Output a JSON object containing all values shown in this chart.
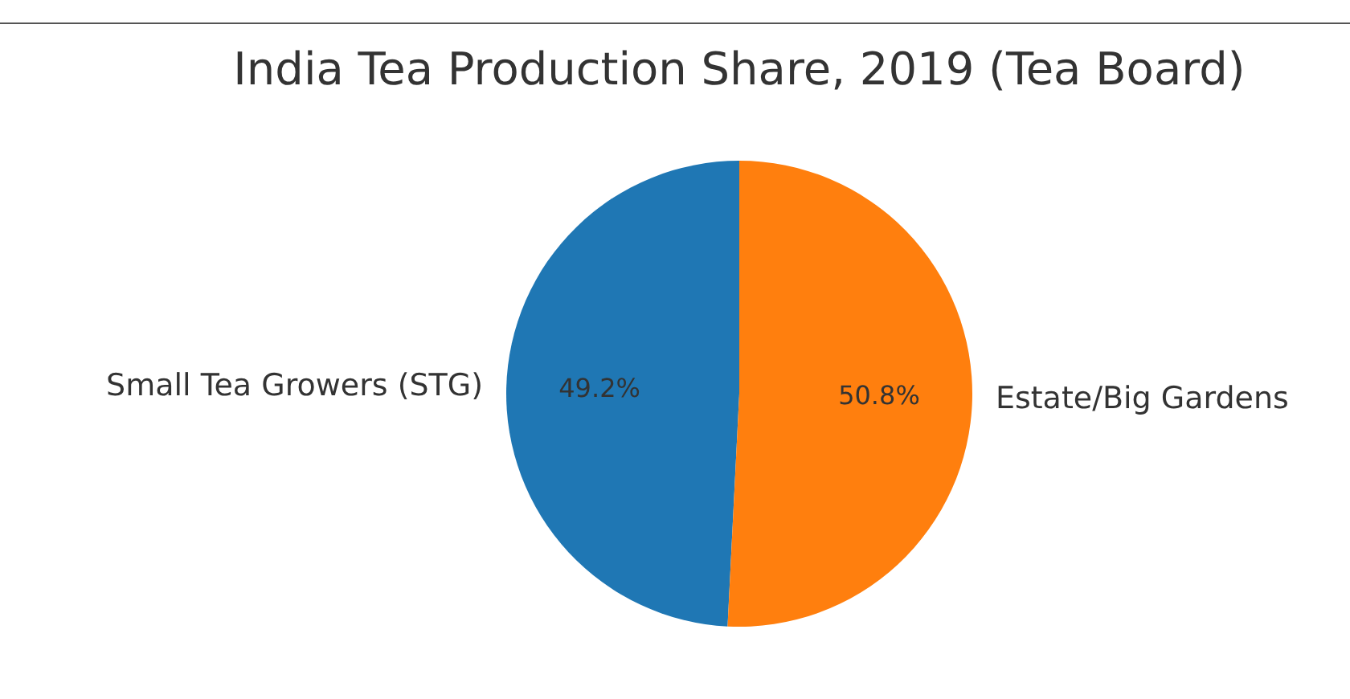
{
  "chart_data": {
    "type": "pie",
    "title": "India Tea Production Share, 2019 (Tea Board)",
    "categories": [
      "Small Tea Growers (STG)",
      "Estate/Big Gardens"
    ],
    "values": [
      49.2,
      50.8
    ],
    "colors": [
      "#1f77b4",
      "#ff7f0e"
    ],
    "value_labels": [
      "49.2%",
      "50.8%"
    ],
    "legend": false
  }
}
